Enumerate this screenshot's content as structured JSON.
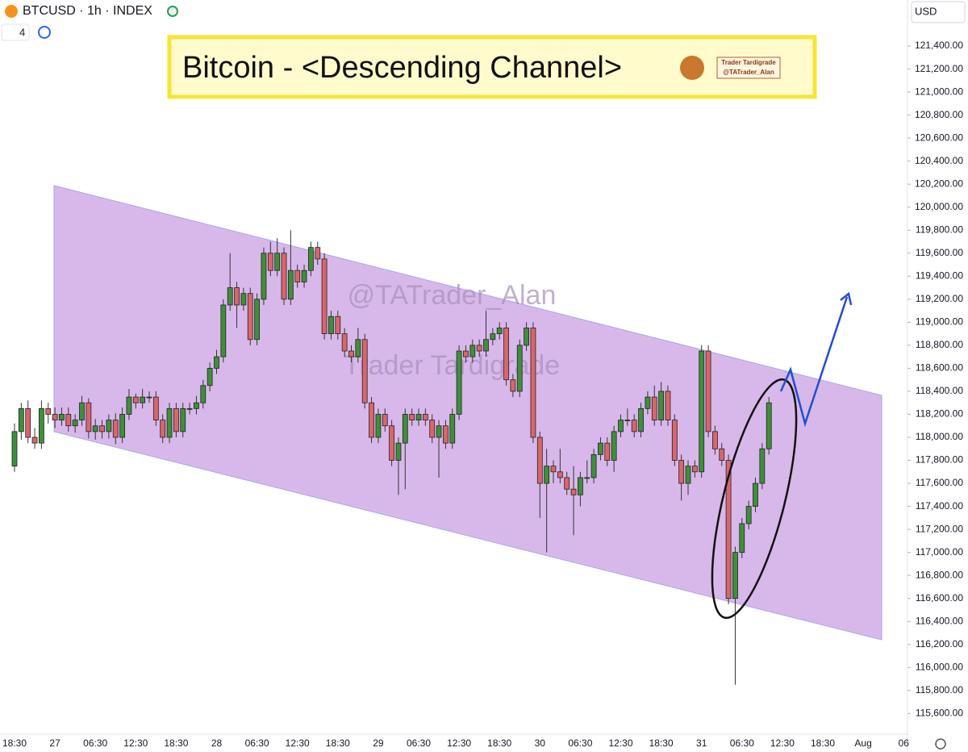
{
  "header": {
    "symbol": "BTCUSD · 1h · INDEX",
    "indicator_count": "4",
    "currency": "USD"
  },
  "chart_data": {
    "type": "candlestick",
    "title": "Bitcoin - <Descending Channel>",
    "watermark": [
      "@TATrader_Alan",
      "Trader Tardigrade"
    ],
    "logo_text": [
      "Trader Tardigrade",
      "@TATrader_Alan"
    ],
    "colors": {
      "up": "#3f8f3a",
      "down": "#d9666c"
    },
    "categories": [
      "18:30",
      null,
      null,
      null,
      null,
      null,
      "27",
      null,
      null,
      null,
      null,
      null,
      "06:30",
      null,
      null,
      null,
      null,
      null,
      "12:30",
      null,
      null,
      null,
      null,
      null,
      "18:30",
      null,
      null,
      null,
      null,
      null,
      "28",
      null,
      null,
      null,
      null,
      null,
      "06:30",
      null,
      null,
      null,
      null,
      null,
      "12:30",
      null,
      null,
      null,
      null,
      null,
      "18:30",
      null,
      null,
      null,
      null,
      null,
      "29",
      null,
      null,
      null,
      null,
      null,
      "06:30",
      null,
      null,
      null,
      null,
      null,
      "12:30",
      null,
      null,
      null,
      null,
      null,
      "18:30",
      null,
      null,
      null,
      null,
      null,
      "30",
      null,
      null,
      null,
      null,
      null,
      "06:30",
      null,
      null,
      null,
      null,
      null,
      "12:30",
      null,
      null,
      null,
      null,
      null,
      "18:30",
      null,
      null,
      null,
      null,
      null,
      "31",
      null,
      null,
      null,
      null,
      null,
      "06:30",
      null,
      null,
      null,
      null,
      null,
      "12:30",
      null,
      null,
      null,
      null,
      null,
      "18:30",
      null,
      null,
      null,
      null,
      null,
      "Aug",
      null,
      null,
      null,
      null,
      null,
      "06"
    ],
    "candles": [
      [
        117750,
        118120,
        117700,
        118050
      ],
      [
        118050,
        118300,
        117980,
        118250
      ],
      [
        118250,
        118320,
        117950,
        118000
      ],
      [
        118000,
        118080,
        117900,
        117950
      ],
      [
        117950,
        118320,
        117900,
        118250
      ],
      [
        118250,
        118300,
        118120,
        118200
      ],
      [
        118200,
        118260,
        118080,
        118150
      ],
      [
        118150,
        118260,
        118100,
        118200
      ],
      [
        118200,
        118260,
        118050,
        118100
      ],
      [
        118100,
        118200,
        118040,
        118150
      ],
      [
        118150,
        118360,
        118100,
        118300
      ],
      [
        118300,
        118340,
        117990,
        118050
      ],
      [
        118050,
        118160,
        117980,
        118100
      ],
      [
        118100,
        118150,
        117990,
        118050
      ],
      [
        118050,
        118200,
        117990,
        118150
      ],
      [
        118150,
        118210,
        117940,
        118000
      ],
      [
        118000,
        118260,
        117950,
        118200
      ],
      [
        118200,
        118420,
        118150,
        118350
      ],
      [
        118350,
        118380,
        118250,
        118300
      ],
      [
        118300,
        118420,
        118250,
        118350
      ],
      [
        118350,
        118400,
        118300,
        118350
      ],
      [
        118350,
        118400,
        118100,
        118150
      ],
      [
        118150,
        118200,
        117950,
        118000
      ],
      [
        118000,
        118300,
        117950,
        118250
      ],
      [
        118250,
        118300,
        118000,
        118050
      ],
      [
        118050,
        118300,
        118000,
        118250
      ],
      [
        118250,
        118300,
        118200,
        118250
      ],
      [
        118250,
        118360,
        118200,
        118300
      ],
      [
        118300,
        118500,
        118250,
        118450
      ],
      [
        118450,
        118650,
        118400,
        118600
      ],
      [
        118600,
        118760,
        118550,
        118700
      ],
      [
        118700,
        119200,
        118650,
        119150
      ],
      [
        119150,
        119600,
        119100,
        119300
      ],
      [
        119300,
        119350,
        118950,
        119150
      ],
      [
        119150,
        119300,
        119100,
        119250
      ],
      [
        119250,
        119300,
        118800,
        118850
      ],
      [
        118850,
        119250,
        118800,
        119200
      ],
      [
        119200,
        119650,
        119150,
        119600
      ],
      [
        119600,
        119700,
        119400,
        119450
      ],
      [
        119450,
        119730,
        119400,
        119600
      ],
      [
        119600,
        119650,
        119150,
        119200
      ],
      [
        119200,
        119800,
        119150,
        119450
      ],
      [
        119450,
        119500,
        119300,
        119350
      ],
      [
        119350,
        119500,
        119300,
        119450
      ],
      [
        119450,
        119700,
        119400,
        119650
      ],
      [
        119650,
        119700,
        119500,
        119550
      ],
      [
        119550,
        119600,
        118850,
        118900
      ],
      [
        118900,
        119100,
        118850,
        119050
      ],
      [
        119050,
        119100,
        118850,
        118900
      ],
      [
        118900,
        118950,
        118700,
        118750
      ],
      [
        118750,
        118800,
        118650,
        118700
      ],
      [
        118700,
        118950,
        118650,
        118850
      ],
      [
        118850,
        118900,
        118250,
        118300
      ],
      [
        118300,
        118350,
        117950,
        118000
      ],
      [
        118000,
        118250,
        117950,
        118200
      ],
      [
        118200,
        118250,
        118050,
        118100
      ],
      [
        118100,
        118150,
        117750,
        117800
      ],
      [
        117800,
        118000,
        117500,
        117950
      ],
      [
        117950,
        118250,
        117550,
        118200
      ],
      [
        118200,
        118250,
        118100,
        118150
      ],
      [
        118150,
        118250,
        118100,
        118200
      ],
      [
        118200,
        118250,
        118100,
        118150
      ],
      [
        118150,
        118200,
        117950,
        118000
      ],
      [
        118000,
        118150,
        117650,
        118100
      ],
      [
        118100,
        118150,
        117900,
        117950
      ],
      [
        117950,
        118250,
        117900,
        118200
      ],
      [
        118200,
        118800,
        118150,
        118750
      ],
      [
        118750,
        118800,
        118650,
        118700
      ],
      [
        118700,
        118850,
        118650,
        118800
      ],
      [
        118800,
        118850,
        118700,
        118750
      ],
      [
        118750,
        119100,
        118700,
        118850
      ],
      [
        118850,
        118950,
        118800,
        118900
      ],
      [
        118900,
        119000,
        118850,
        118950
      ],
      [
        118950,
        119000,
        118450,
        118500
      ],
      [
        118500,
        118550,
        118350,
        118400
      ],
      [
        118400,
        118850,
        118350,
        118800
      ],
      [
        118800,
        119000,
        118750,
        118950
      ],
      [
        118950,
        119000,
        117950,
        118000
      ],
      [
        118000,
        118050,
        117300,
        117600
      ],
      [
        117600,
        117900,
        117000,
        117750
      ],
      [
        117750,
        117800,
        117600,
        117700
      ],
      [
        117700,
        117900,
        117600,
        117650
      ],
      [
        117650,
        117700,
        117500,
        117550
      ],
      [
        117550,
        117750,
        117150,
        117500
      ],
      [
        117500,
        117700,
        117400,
        117650
      ],
      [
        117650,
        117800,
        117600,
        117650
      ],
      [
        117650,
        117900,
        117600,
        117850
      ],
      [
        117850,
        118000,
        117800,
        117950
      ],
      [
        117950,
        118000,
        117750,
        117800
      ],
      [
        117800,
        118100,
        117700,
        118050
      ],
      [
        118050,
        118200,
        118000,
        118150
      ],
      [
        118150,
        118250,
        118100,
        118150
      ],
      [
        118150,
        118200,
        118000,
        118050
      ],
      [
        118050,
        118300,
        118000,
        118250
      ],
      [
        118250,
        118400,
        118200,
        118350
      ],
      [
        118350,
        118450,
        118100,
        118150
      ],
      [
        118150,
        118480,
        118100,
        118400
      ],
      [
        118400,
        118450,
        118100,
        118150
      ],
      [
        118150,
        118200,
        117750,
        117800
      ],
      [
        117800,
        117850,
        117450,
        117600
      ],
      [
        117600,
        117800,
        117500,
        117750
      ],
      [
        117750,
        117800,
        117650,
        117700
      ],
      [
        117700,
        118800,
        117650,
        118750
      ],
      [
        118750,
        118800,
        118000,
        118050
      ],
      [
        118050,
        118100,
        117850,
        117900
      ],
      [
        117900,
        117950,
        117750,
        117800
      ],
      [
        117800,
        117850,
        116550,
        116600
      ],
      [
        116600,
        117050,
        115850,
        117000
      ],
      [
        117000,
        117300,
        116950,
        117250
      ],
      [
        117250,
        117450,
        117200,
        117400
      ],
      [
        117400,
        117650,
        117350,
        117600
      ],
      [
        117600,
        117950,
        117550,
        117900
      ],
      [
        117900,
        118350,
        117850,
        118300
      ],
      null,
      null,
      null,
      null,
      null,
      null,
      null,
      null,
      null,
      null,
      null,
      null,
      null,
      null,
      null,
      null,
      null,
      null,
      null,
      null
    ],
    "ylim": [
      115420,
      121800
    ],
    "yticks": [
      {
        "value": 115600,
        "label": "115,600.00"
      },
      {
        "value": 115800,
        "label": "115,800.00"
      },
      {
        "value": 116000,
        "label": "116,000.00"
      },
      {
        "value": 116200,
        "label": "116,200.00"
      },
      {
        "value": 116400,
        "label": "116,400.00"
      },
      {
        "value": 116600,
        "label": "116,600.00"
      },
      {
        "value": 116800,
        "label": "116,800.00"
      },
      {
        "value": 117000,
        "label": "117,000.00"
      },
      {
        "value": 117200,
        "label": "117,200.00"
      },
      {
        "value": 117400,
        "label": "117,400.00"
      },
      {
        "value": 117600,
        "label": "117,600.00"
      },
      {
        "value": 117800,
        "label": "117,800.00"
      },
      {
        "value": 118000,
        "label": "118,000.00"
      },
      {
        "value": 118200,
        "label": "118,200.00"
      },
      {
        "value": 118400,
        "label": "118,400.00"
      },
      {
        "value": 118600,
        "label": "118,600.00"
      },
      {
        "value": 118800,
        "label": "118,800.00"
      },
      {
        "value": 119000,
        "label": "119,000.00"
      },
      {
        "value": 119200,
        "label": "119,200.00"
      },
      {
        "value": 119400,
        "label": "119,400.00"
      },
      {
        "value": 119600,
        "label": "119,600.00"
      },
      {
        "value": 119800,
        "label": "119,800.00"
      },
      {
        "value": 120000,
        "label": "120,000.00"
      },
      {
        "value": 120200,
        "label": "120,200.00"
      },
      {
        "value": 120400,
        "label": "120,400.00"
      },
      {
        "value": 120600,
        "label": "120,600.00"
      },
      {
        "value": 120800,
        "label": "120,800.00"
      },
      {
        "value": 121000,
        "label": "121,000.00"
      },
      {
        "value": 121200,
        "label": "121,200.00"
      },
      {
        "value": 121400,
        "label": "121,400.00"
      }
    ]
  }
}
